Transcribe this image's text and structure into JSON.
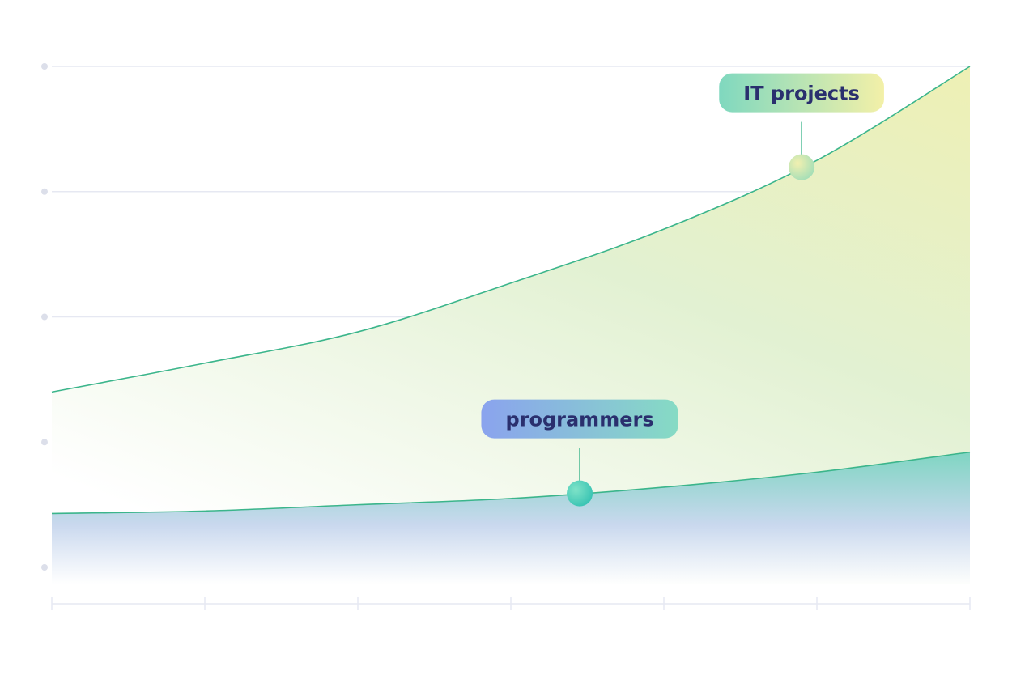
{
  "chart_data": {
    "type": "area",
    "title": "",
    "xlabel": "",
    "ylabel": "",
    "grid": true,
    "legend": "none",
    "x": [
      0,
      1,
      2,
      3,
      4,
      5,
      6
    ],
    "xlim": [
      0,
      6
    ],
    "ylim": [
      0,
      4
    ],
    "series": [
      {
        "name": "IT projects",
        "values": [
          1.4,
          1.63,
          1.88,
          2.27,
          2.7,
          3.25,
          4.0
        ],
        "callout_x": 4.9
      },
      {
        "name": "programmers",
        "values": [
          0.43,
          0.45,
          0.5,
          0.55,
          0.64,
          0.76,
          0.92
        ],
        "callout_x": 3.45
      }
    ]
  },
  "colors": {
    "line": "#3bb58b",
    "grid": "#e6e8f2",
    "tick_dot": "#dcdfea",
    "label_text": "#2a2f6e",
    "it_fill_top": "#eef0b4",
    "it_fill_bottom": "#ffffff",
    "prog_fill_top": "#7fd5c2",
    "prog_fill_bottom": "#e6e8f8",
    "it_badge": [
      "#7fd8bf",
      "#f3f0a8"
    ],
    "prog_badge": [
      "#8aa3ee",
      "#86dbc4"
    ]
  }
}
